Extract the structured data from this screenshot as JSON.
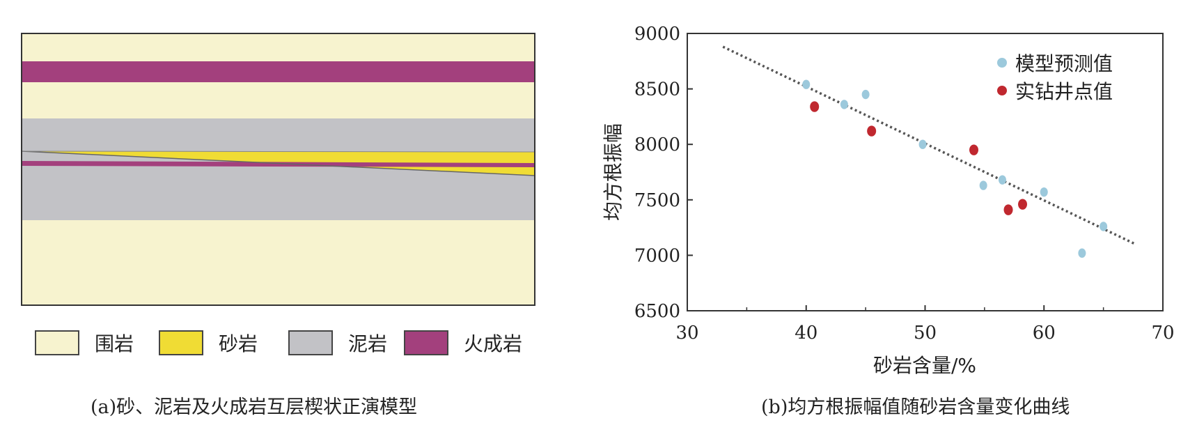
{
  "panel_a": {
    "colors": {
      "surround": "#f7f3cf",
      "sandstone": "#f0dc34",
      "mudstone": "#c2c2c6",
      "igneous": "#a3407d",
      "border": "#333333"
    },
    "legend": [
      {
        "label": "围岩",
        "color": "#f7f3cf"
      },
      {
        "label": "砂岩",
        "color": "#f0dc34"
      },
      {
        "label": "泥岩",
        "color": "#c2c2c6"
      },
      {
        "label": "火成岩",
        "color": "#a3407d"
      }
    ],
    "caption": "(a)砂、泥岩及火成岩互层楔状正演模型"
  },
  "panel_b": {
    "caption": "(b)均方根振幅值随砂岩含量变化曲线",
    "colors": {
      "predicted": "#9cc9dc",
      "actual": "#c0282f",
      "trend": "#555555"
    },
    "legend": [
      {
        "label": "模型预测值",
        "color": "#9cc9dc"
      },
      {
        "label": "实钻井点值",
        "color": "#c0282f"
      }
    ]
  },
  "chart_data": {
    "type": "scatter",
    "xlabel": "砂岩含量/%",
    "ylabel": "均方根振幅",
    "xlim": [
      30,
      70
    ],
    "ylim": [
      6500,
      9000
    ],
    "xticks": [
      30,
      40,
      50,
      60,
      70
    ],
    "yticks": [
      6500,
      7000,
      7500,
      8000,
      8500,
      9000
    ],
    "grid": false,
    "legend_position": "top-right",
    "series": [
      {
        "name": "模型预测值",
        "points": [
          {
            "x": 40,
            "y": 8540
          },
          {
            "x": 43.2,
            "y": 8360
          },
          {
            "x": 45,
            "y": 8450
          },
          {
            "x": 49.8,
            "y": 8000
          },
          {
            "x": 54.9,
            "y": 7630
          },
          {
            "x": 56.5,
            "y": 7680
          },
          {
            "x": 60,
            "y": 7570
          },
          {
            "x": 63.2,
            "y": 7020
          },
          {
            "x": 65,
            "y": 7260
          }
        ]
      },
      {
        "name": "实钻井点值",
        "points": [
          {
            "x": 40.7,
            "y": 8340
          },
          {
            "x": 45.5,
            "y": 8120
          },
          {
            "x": 54.1,
            "y": 7950
          },
          {
            "x": 57,
            "y": 7410
          },
          {
            "x": 58.2,
            "y": 7460
          }
        ]
      }
    ],
    "trendline": {
      "style": "dotted",
      "from": {
        "x": 33,
        "y": 8880
      },
      "to": {
        "x": 67.7,
        "y": 7100
      }
    }
  }
}
